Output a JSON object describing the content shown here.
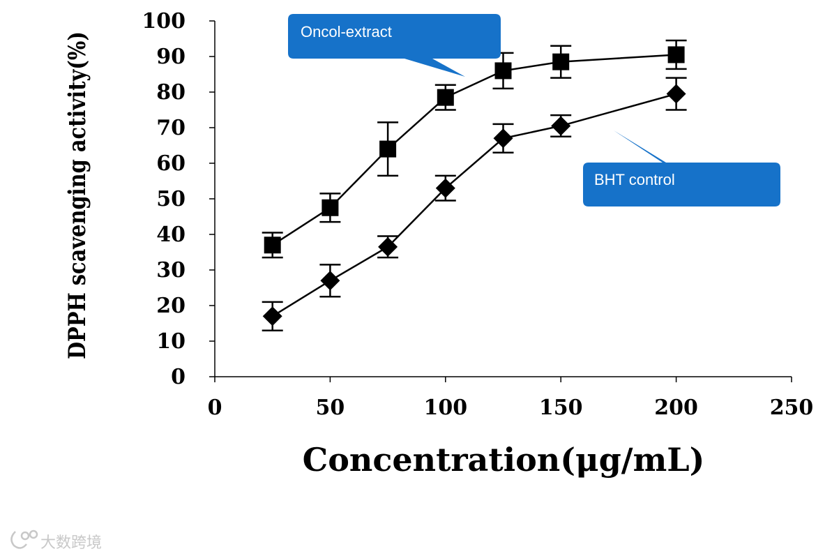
{
  "chart_data": {
    "type": "line",
    "xlabel": "Concentration(μg/mL)",
    "ylabel": "DPPH scavenging activity(%)",
    "xlim": [
      0,
      250
    ],
    "ylim": [
      0,
      100
    ],
    "x_ticks": [
      0,
      50,
      100,
      150,
      200,
      250
    ],
    "y_ticks": [
      0,
      10,
      20,
      30,
      40,
      50,
      60,
      70,
      80,
      90,
      100
    ],
    "grid": false,
    "series": [
      {
        "name": "Oncol-extract",
        "marker": "square",
        "x": [
          25,
          50,
          75,
          100,
          125,
          150,
          200
        ],
        "y": [
          37,
          47.5,
          64,
          78.5,
          86,
          88.5,
          90.5
        ],
        "err": [
          3.5,
          4,
          7.5,
          3.5,
          5,
          4.5,
          4
        ]
      },
      {
        "name": "BHT control",
        "marker": "diamond",
        "x": [
          25,
          50,
          75,
          100,
          125,
          150,
          200
        ],
        "y": [
          17,
          27,
          36.5,
          53,
          67,
          70.5,
          79.5
        ],
        "err": [
          4,
          4.5,
          3,
          3.5,
          4,
          3,
          4.5
        ]
      }
    ]
  },
  "annotations": {
    "oncol_label": "Oncol-extract",
    "bht_label": "BHT control",
    "callout_color": "#1672c9"
  },
  "watermark": {
    "text": "大数跨境"
  }
}
